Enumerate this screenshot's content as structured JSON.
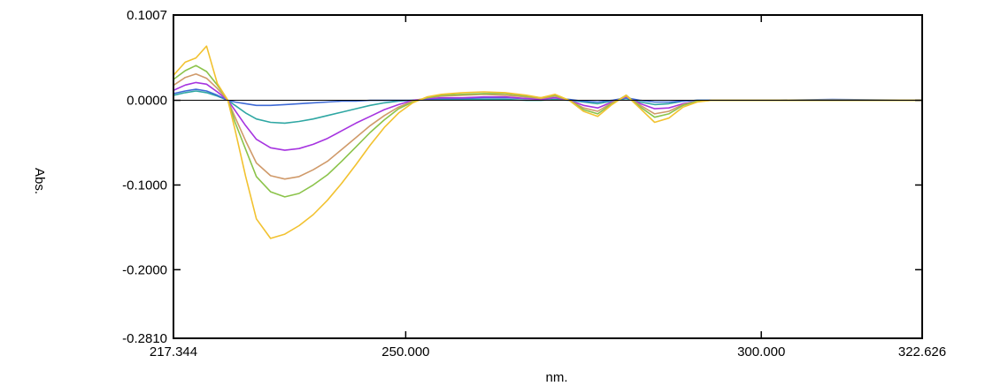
{
  "chart_data": {
    "type": "line",
    "xlabel": "nm.",
    "ylabel": "Abs.",
    "xlim": [
      217.344,
      322.626
    ],
    "ylim": [
      -0.281,
      0.1007
    ],
    "x_ticks": [
      217.344,
      250.0,
      300.0,
      322.626
    ],
    "x_tick_labels": [
      "217.344",
      "250.000",
      "300.000",
      "322.626"
    ],
    "y_ticks": [
      0.1007,
      0.0,
      -0.1,
      -0.2,
      -0.281
    ],
    "y_tick_labels": [
      "0.1007",
      "0.0000",
      "-0.1000",
      "-0.2000",
      "-0.2810"
    ],
    "zero_line": 0.0,
    "grid": false,
    "x": [
      217.4,
      219,
      220.5,
      222,
      223.5,
      225,
      226,
      227.5,
      229,
      231,
      233,
      235,
      237,
      239,
      241,
      243,
      245,
      247,
      249,
      251,
      253,
      255,
      258,
      261,
      264,
      267,
      269,
      271,
      273,
      275,
      277,
      279,
      281,
      283,
      285,
      287,
      289,
      291,
      293,
      295,
      300,
      310,
      322.5
    ],
    "series": [
      {
        "color": "#2fa7a3",
        "values": [
          0.006,
          0.009,
          0.011,
          0.009,
          0.005,
          0.0,
          -0.006,
          -0.015,
          -0.022,
          -0.026,
          -0.027,
          -0.025,
          -0.022,
          -0.018,
          -0.014,
          -0.01,
          -0.006,
          -0.003,
          -0.001,
          0.0,
          0.001,
          0.001,
          0.001,
          0.001,
          0.001,
          0.0,
          0.0,
          0.001,
          0.0,
          -0.002,
          -0.004,
          -0.001,
          0.002,
          -0.002,
          -0.005,
          -0.004,
          -0.001,
          0.0,
          0.0,
          0.0,
          0.0,
          0.0,
          0.0
        ]
      },
      {
        "color": "#3f6bd6",
        "values": [
          0.008,
          0.011,
          0.013,
          0.011,
          0.006,
          0.0,
          -0.002,
          -0.004,
          -0.006,
          -0.006,
          -0.005,
          -0.004,
          -0.003,
          -0.002,
          -0.001,
          -0.001,
          0.0,
          0.0,
          0.0,
          0.0,
          0.001,
          0.002,
          0.002,
          0.003,
          0.003,
          0.002,
          0.002,
          0.003,
          0.001,
          -0.001,
          -0.002,
          0.0,
          0.003,
          0.0,
          -0.002,
          -0.002,
          -0.001,
          0.0,
          0.0,
          0.0,
          0.0,
          0.001,
          0.0
        ]
      },
      {
        "color": "#a634e0",
        "values": [
          0.012,
          0.018,
          0.021,
          0.019,
          0.01,
          0.0,
          -0.012,
          -0.03,
          -0.046,
          -0.056,
          -0.059,
          -0.057,
          -0.052,
          -0.045,
          -0.036,
          -0.027,
          -0.019,
          -0.011,
          -0.005,
          0.0,
          0.002,
          0.003,
          0.003,
          0.004,
          0.004,
          0.002,
          0.001,
          0.003,
          0.0,
          -0.006,
          -0.009,
          -0.002,
          0.004,
          -0.004,
          -0.01,
          -0.009,
          -0.004,
          -0.001,
          0.0,
          0.0,
          0.0,
          0.0,
          0.0
        ]
      },
      {
        "color": "#d09a6a",
        "values": [
          0.018,
          0.027,
          0.031,
          0.026,
          0.014,
          0.0,
          -0.02,
          -0.048,
          -0.074,
          -0.089,
          -0.093,
          -0.09,
          -0.082,
          -0.072,
          -0.058,
          -0.044,
          -0.03,
          -0.018,
          -0.008,
          -0.001,
          0.003,
          0.005,
          0.006,
          0.007,
          0.006,
          0.004,
          0.002,
          0.005,
          0.0,
          -0.009,
          -0.013,
          -0.003,
          0.005,
          -0.006,
          -0.016,
          -0.013,
          -0.005,
          -0.001,
          0.0,
          0.0,
          0.0,
          0.0,
          0.0
        ]
      },
      {
        "color": "#8bc34a",
        "values": [
          0.025,
          0.035,
          0.041,
          0.034,
          0.018,
          0.0,
          -0.026,
          -0.058,
          -0.09,
          -0.108,
          -0.114,
          -0.11,
          -0.1,
          -0.088,
          -0.072,
          -0.055,
          -0.038,
          -0.023,
          -0.01,
          -0.002,
          0.003,
          0.006,
          0.007,
          0.008,
          0.008,
          0.005,
          0.003,
          0.006,
          0.0,
          -0.011,
          -0.016,
          -0.004,
          0.006,
          -0.008,
          -0.02,
          -0.016,
          -0.006,
          -0.001,
          0.0,
          0.0,
          0.0,
          0.0,
          0.0
        ]
      },
      {
        "color": "#f2c230",
        "values": [
          0.03,
          0.045,
          0.05,
          0.064,
          0.02,
          0.0,
          -0.035,
          -0.09,
          -0.14,
          -0.163,
          -0.158,
          -0.148,
          -0.135,
          -0.118,
          -0.098,
          -0.076,
          -0.053,
          -0.032,
          -0.015,
          -0.003,
          0.004,
          0.007,
          0.009,
          0.01,
          0.009,
          0.006,
          0.003,
          0.007,
          0.0,
          -0.013,
          -0.019,
          -0.005,
          0.006,
          -0.01,
          -0.026,
          -0.021,
          -0.008,
          -0.002,
          0.0,
          0.0,
          0.0,
          0.0,
          0.0
        ]
      }
    ]
  }
}
